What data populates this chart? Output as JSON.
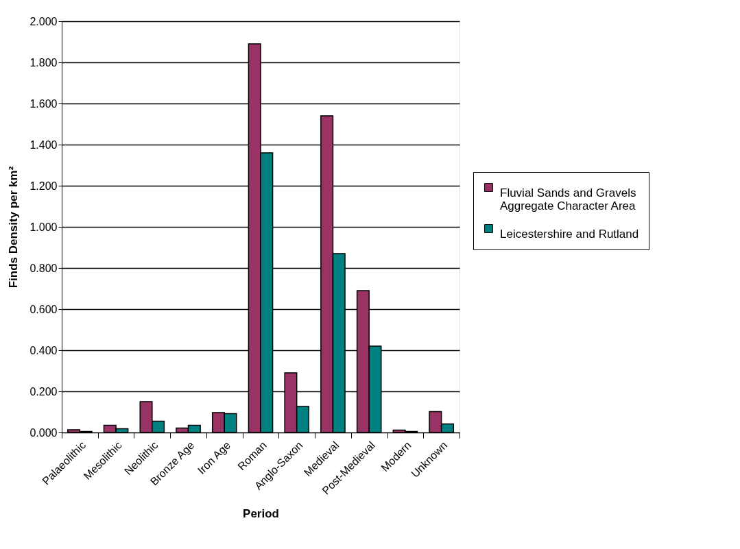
{
  "chart_data": {
    "type": "bar",
    "xlabel": "Period",
    "ylabel": "Finds Density per km²",
    "categories": [
      "Palaeolithic",
      "Mesolithic",
      "Neolithic",
      "Bronze Age",
      "Iron Age",
      "Roman",
      "Anglo-Saxon",
      "Medieval",
      "Post-Medieval",
      "Modern",
      "Unknown"
    ],
    "series": [
      {
        "name": "Fluvial Sands and Gravels Aggregate Character Area",
        "color": "#993366",
        "values": [
          0.013,
          0.035,
          0.15,
          0.022,
          0.097,
          1.89,
          0.29,
          1.54,
          0.69,
          0.012,
          0.102
        ]
      },
      {
        "name": "Leicestershire and Rutland",
        "color": "#008080",
        "values": [
          0.005,
          0.018,
          0.055,
          0.035,
          0.092,
          1.36,
          0.127,
          0.87,
          0.42,
          0.005,
          0.042
        ]
      }
    ],
    "ylim": [
      0,
      2
    ],
    "yticks": [
      {
        "value": 0,
        "label": "0.000"
      },
      {
        "value": 0.2,
        "label": "0.200"
      },
      {
        "value": 0.4,
        "label": "0.400"
      },
      {
        "value": 0.6,
        "label": "0.600"
      },
      {
        "value": 0.8,
        "label": "0.800"
      },
      {
        "value": 1.0,
        "label": "1.000"
      },
      {
        "value": 1.2,
        "label": "1.200"
      },
      {
        "value": 1.4,
        "label": "1.400"
      },
      {
        "value": 1.6,
        "label": "1.600"
      },
      {
        "value": 1.8,
        "label": "1.800"
      },
      {
        "value": 2.0,
        "label": "2.000"
      }
    ],
    "grid": "y",
    "legend": "right"
  }
}
